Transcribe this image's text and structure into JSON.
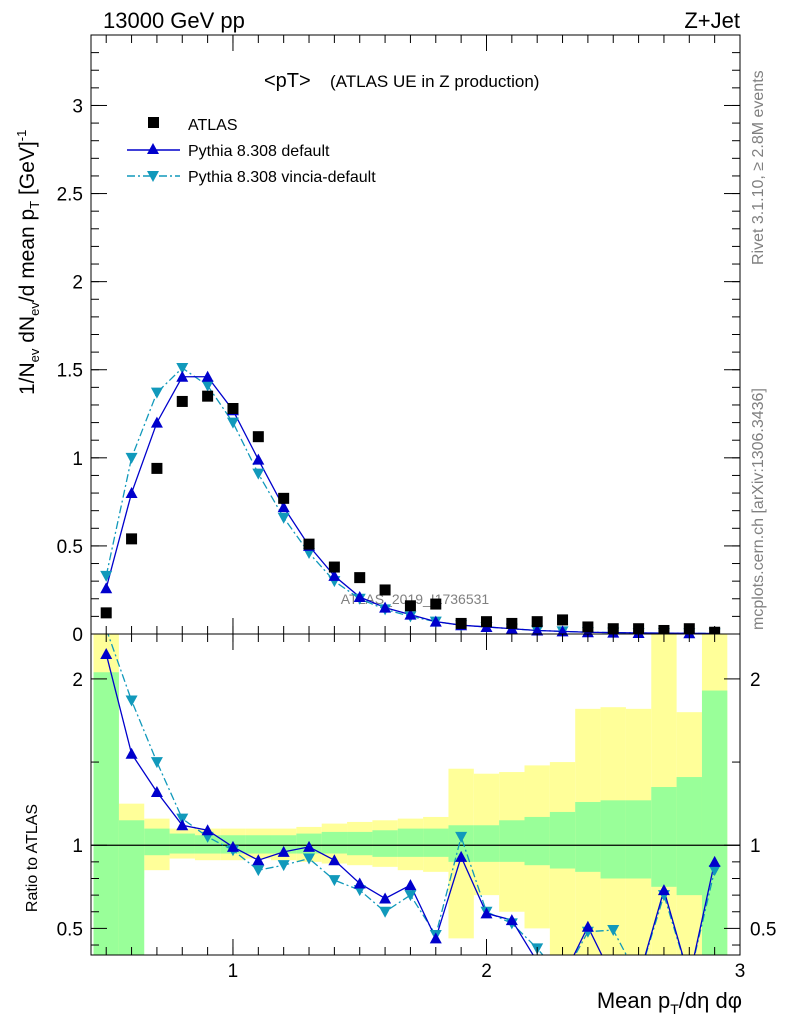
{
  "header": {
    "energy": "13000 GeV pp",
    "process": "Z+Jet"
  },
  "side_labels": {
    "rivet": "Rivet 3.1.10, ≥ 2.8M events",
    "mcplots": "mcplots.cern.ch [arXiv:1306.3436]"
  },
  "plot_title": {
    "main": "<pT>",
    "sub": "(ATLAS UE in Z production)"
  },
  "watermark": "ATLAS_2019_I1736531",
  "axes": {
    "ylabel_top": "1/N_ev dN_ev/d mean p_T [GeV]^-1",
    "ylabel_ratio": "Ratio to ATLAS",
    "xlabel": "Mean p_T/dη dφ"
  },
  "legend": [
    {
      "name": "ATLAS",
      "marker": "square",
      "color": "#000000"
    },
    {
      "name": "Pythia 8.308 default",
      "marker": "triangle-up",
      "color": "#0000cc",
      "line": "solid"
    },
    {
      "name": "Pythia 8.308 vincia-default",
      "marker": "triangle-down",
      "color": "#1199bb",
      "line": "dashdot"
    }
  ],
  "chart_data": [
    {
      "type": "scatter",
      "panel": "main",
      "xlim": [
        0.44,
        3.0
      ],
      "ylim": [
        0,
        3.4
      ],
      "yticks": [
        0,
        0.5,
        1,
        1.5,
        2,
        2.5,
        3
      ],
      "x": [
        0.5,
        0.6,
        0.7,
        0.8,
        0.9,
        1.0,
        1.1,
        1.2,
        1.3,
        1.4,
        1.5,
        1.6,
        1.7,
        1.8,
        1.9,
        2.0,
        2.1,
        2.2,
        2.3,
        2.4,
        2.5,
        2.6,
        2.7,
        2.8,
        2.9
      ],
      "series": [
        {
          "name": "ATLAS",
          "values": [
            0.12,
            0.54,
            0.94,
            1.32,
            1.35,
            1.28,
            1.12,
            0.77,
            0.51,
            0.38,
            0.32,
            0.25,
            0.16,
            0.17,
            0.06,
            0.07,
            0.06,
            0.07,
            0.08,
            0.04,
            0.03,
            0.03,
            0.02,
            0.03,
            0.01
          ]
        },
        {
          "name": "Pythia 8.308 default",
          "values": [
            0.26,
            0.8,
            1.2,
            1.46,
            1.46,
            1.27,
            0.99,
            0.72,
            0.5,
            0.33,
            0.21,
            0.15,
            0.11,
            0.07,
            0.05,
            0.04,
            0.03,
            0.02,
            0.015,
            0.01,
            0.008,
            0.006,
            0.005,
            0.004,
            0.003
          ]
        },
        {
          "name": "Pythia 8.308 vincia-default",
          "values": [
            0.33,
            1.0,
            1.37,
            1.51,
            1.41,
            1.2,
            0.91,
            0.66,
            0.46,
            0.3,
            0.2,
            0.14,
            0.1,
            0.07,
            0.05,
            0.04,
            0.03,
            0.02,
            0.015,
            0.01,
            0.008,
            0.006,
            0.005,
            0.004,
            0.003
          ]
        }
      ]
    },
    {
      "type": "line",
      "panel": "ratio",
      "xlim": [
        0.44,
        3.0
      ],
      "ylim": [
        0.34,
        2.27
      ],
      "yticks": [
        0.5,
        1,
        2
      ],
      "xticks": [
        1,
        2,
        3
      ],
      "x": [
        0.5,
        0.6,
        0.7,
        0.8,
        0.9,
        1.0,
        1.1,
        1.2,
        1.3,
        1.4,
        1.5,
        1.6,
        1.7,
        1.8,
        1.9,
        2.0,
        2.1,
        2.2,
        2.3,
        2.4,
        2.5,
        2.6,
        2.7,
        2.8,
        2.9
      ],
      "series": [
        {
          "name": "Pythia 8.308 default",
          "values": [
            2.15,
            1.55,
            1.32,
            1.12,
            1.09,
            0.99,
            0.91,
            0.96,
            0.99,
            0.91,
            0.77,
            0.68,
            0.76,
            0.44,
            0.93,
            0.59,
            0.55,
            0.3,
            0.2,
            0.51,
            0.2,
            0.2,
            0.73,
            0.2,
            0.9
          ]
        },
        {
          "name": "Pythia 8.308 vincia-default",
          "values": [
            2.3,
            1.87,
            1.5,
            1.16,
            1.05,
            0.97,
            0.85,
            0.88,
            0.92,
            0.79,
            0.73,
            0.6,
            0.7,
            0.46,
            1.05,
            0.6,
            0.53,
            0.38,
            0.2,
            0.48,
            0.49,
            0.2,
            0.7,
            0.2,
            0.85
          ]
        }
      ],
      "bands": {
        "x_edges": [
          0.45,
          0.55,
          0.65,
          0.75,
          0.85,
          0.95,
          1.05,
          1.15,
          1.25,
          1.35,
          1.45,
          1.55,
          1.65,
          1.75,
          1.85,
          1.95,
          2.05,
          2.15,
          2.25,
          2.35,
          2.45,
          2.55,
          2.65,
          2.75,
          2.85,
          2.95
        ],
        "stat_lo": [
          0.34,
          0.34,
          0.94,
          0.95,
          0.95,
          0.95,
          0.95,
          0.95,
          0.95,
          0.95,
          0.94,
          0.93,
          0.93,
          0.93,
          0.9,
          0.9,
          0.9,
          0.88,
          0.86,
          0.84,
          0.8,
          0.8,
          0.75,
          0.7,
          0.34
        ],
        "stat_hi": [
          2.04,
          1.15,
          1.1,
          1.07,
          1.06,
          1.06,
          1.06,
          1.06,
          1.07,
          1.08,
          1.08,
          1.09,
          1.1,
          1.1,
          1.12,
          1.12,
          1.15,
          1.17,
          1.2,
          1.26,
          1.27,
          1.27,
          1.35,
          1.41,
          1.93
        ],
        "syst_lo": [
          0.34,
          0.8,
          0.85,
          0.92,
          0.91,
          0.91,
          0.92,
          0.91,
          0.9,
          0.89,
          0.88,
          0.87,
          0.85,
          0.84,
          0.44,
          0.7,
          0.6,
          0.5,
          0.34,
          0.34,
          0.34,
          0.34,
          0.34,
          0.34,
          0.34
        ],
        "syst_hi": [
          2.27,
          1.25,
          1.16,
          1.1,
          1.1,
          1.1,
          1.1,
          1.1,
          1.11,
          1.13,
          1.14,
          1.15,
          1.16,
          1.17,
          1.46,
          1.43,
          1.44,
          1.48,
          1.5,
          1.82,
          1.83,
          1.82,
          2.27,
          1.8,
          2.27
        ]
      }
    }
  ]
}
